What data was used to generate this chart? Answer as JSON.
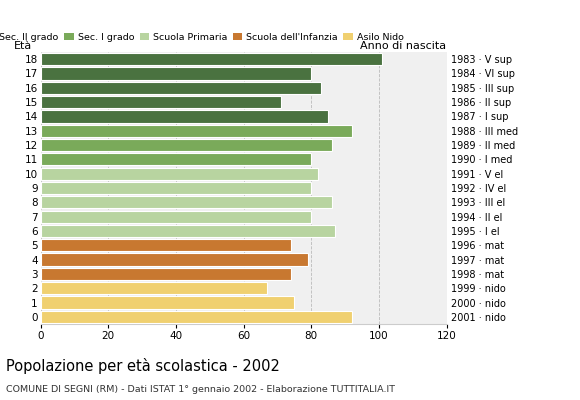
{
  "ages": [
    18,
    17,
    16,
    15,
    14,
    13,
    12,
    11,
    10,
    9,
    8,
    7,
    6,
    5,
    4,
    3,
    2,
    1,
    0
  ],
  "values": [
    101,
    80,
    83,
    71,
    85,
    92,
    86,
    80,
    82,
    80,
    86,
    80,
    87,
    74,
    79,
    74,
    67,
    75,
    92
  ],
  "anno_nascita": [
    "1983 · V sup",
    "1984 · VI sup",
    "1985 · III sup",
    "1986 · II sup",
    "1987 · I sup",
    "1988 · III med",
    "1989 · II med",
    "1990 · I med",
    "1991 · V el",
    "1992 · IV el",
    "1993 · III el",
    "1994 · II el",
    "1995 · I el",
    "1996 · mat",
    "1997 · mat",
    "1998 · mat",
    "1999 · nido",
    "2000 · nido",
    "2001 · nido"
  ],
  "categories": {
    "Sec. II grado": {
      "ages": [
        18,
        17,
        16,
        15,
        14
      ],
      "color": "#4a7240"
    },
    "Sec. I grado": {
      "ages": [
        13,
        12,
        11
      ],
      "color": "#7aaa5a"
    },
    "Scuola Primaria": {
      "ages": [
        10,
        9,
        8,
        7,
        6
      ],
      "color": "#b8d4a0"
    },
    "Scuola dell'Infanzia": {
      "ages": [
        5,
        4,
        3
      ],
      "color": "#c87830"
    },
    "Asilo Nido": {
      "ages": [
        2,
        1,
        0
      ],
      "color": "#f0d070"
    }
  },
  "title": "Popolazione per età scolastica - 2002",
  "subtitle": "COMUNE DI SEGNI (RM) - Dati ISTAT 1° gennaio 2002 - Elaborazione TUTTITALIA.IT",
  "xlabel_left": "Età",
  "xlabel_right": "Anno di nascita",
  "xlim": [
    0,
    120
  ],
  "xticks": [
    0,
    20,
    40,
    60,
    80,
    100,
    120
  ],
  "grid_color": "#bbbbbb",
  "bg_color": "#f0f0f0",
  "bar_height": 0.85
}
